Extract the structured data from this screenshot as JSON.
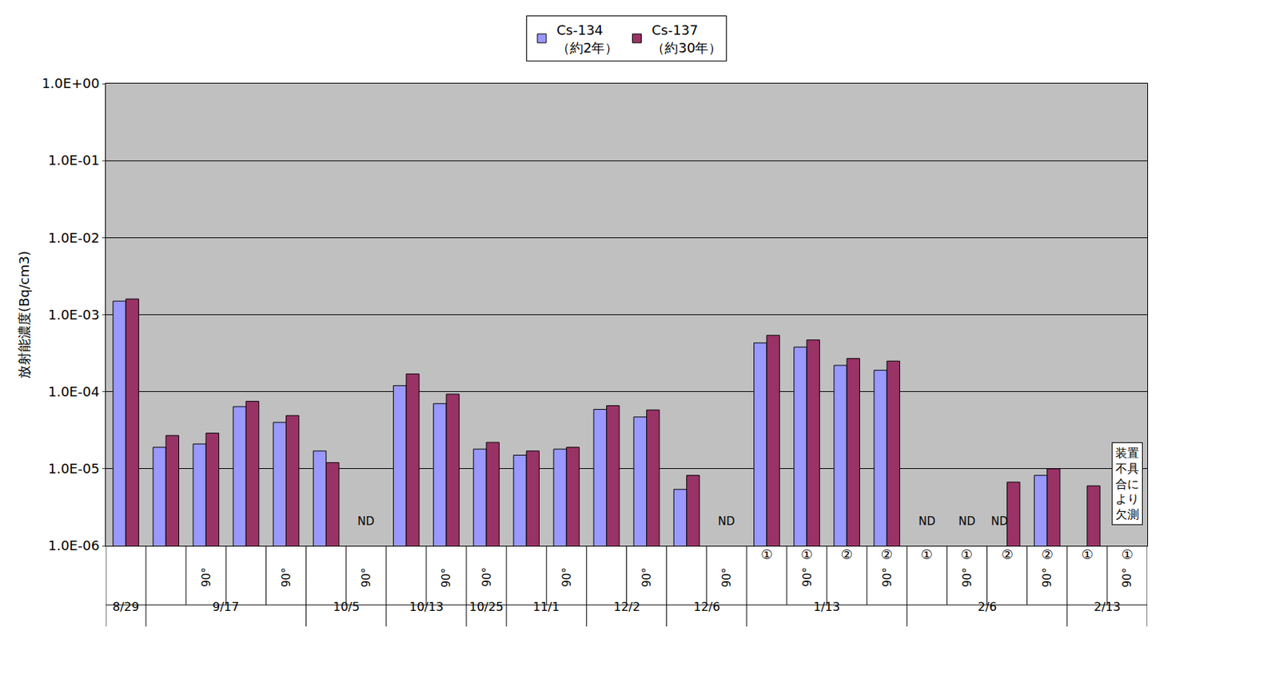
{
  "chart_data": {
    "type": "bar",
    "y_label": "放射能濃度(Bq/cm3)",
    "categories": [
      null,
      null,
      "90°",
      null,
      "90°",
      null,
      "90°",
      null,
      "90°",
      "90°",
      null,
      "90°",
      null,
      "90°",
      null,
      "90°",
      "①",
      "① 90°",
      "②",
      "② 90°",
      "①",
      "① 90°",
      "②",
      "② 90°",
      "①",
      "① 90°"
    ],
    "category_groups": [
      {
        "label": "8/29",
        "count": 1
      },
      {
        "label": "9/17",
        "count": 4
      },
      {
        "label": "10/5",
        "count": 2
      },
      {
        "label": "10/13",
        "count": 2
      },
      {
        "label": "10/25",
        "count": 1
      },
      {
        "label": "11/1",
        "count": 2
      },
      {
        "label": "12/2",
        "count": 2
      },
      {
        "label": "12/6",
        "count": 2
      },
      {
        "label": "1/13",
        "count": 4
      },
      {
        "label": "2/6",
        "count": 4
      },
      {
        "label": "2/13",
        "count": 2
      }
    ],
    "series": [
      {
        "name": "Cs-134",
        "half_life": "（約2年）",
        "color": "#9999ff",
        "values": [
          0.0015,
          1.9e-05,
          2.1e-05,
          6.4e-05,
          4e-05,
          1.7e-05,
          null,
          0.00012,
          7e-05,
          1.8e-05,
          1.5e-05,
          1.8e-05,
          5.9e-05,
          4.7e-05,
          5.4e-06,
          null,
          0.00043,
          0.00038,
          0.00022,
          0.00019,
          null,
          null,
          null,
          8.2e-06,
          null,
          null
        ]
      },
      {
        "name": "Cs-137",
        "half_life": "（約30年）",
        "color": "#993366",
        "values": [
          0.0016,
          2.7e-05,
          2.9e-05,
          7.5e-05,
          4.9e-05,
          1.2e-05,
          null,
          0.00017,
          9.3e-05,
          2.2e-05,
          1.7e-05,
          1.9e-05,
          6.6e-05,
          5.8e-05,
          8.2e-06,
          null,
          0.00054,
          0.00047,
          0.00027,
          0.00025,
          null,
          null,
          6.7e-06,
          1e-05,
          6e-06,
          null
        ]
      }
    ],
    "annotations": [
      {
        "category_index": 6,
        "text": "ND"
      },
      {
        "category_index": 15,
        "text": "ND"
      },
      {
        "category_index": 20,
        "text": "ND"
      },
      {
        "category_index": 21,
        "text": "ND"
      },
      {
        "category_index": 22,
        "text": "ND",
        "series": "Cs-134"
      },
      {
        "category_index": 25,
        "text": "装置不具合により欠測",
        "boxed": true
      }
    ],
    "log": "y",
    "ylim": [
      1e-06,
      1
    ],
    "yticks": [
      {
        "value": 1e-06,
        "label": "1.0E-06"
      },
      {
        "value": 1e-05,
        "label": "1.0E-05"
      },
      {
        "value": 0.0001,
        "label": "1.0E-04"
      },
      {
        "value": 0.001,
        "label": "1.0E-03"
      },
      {
        "value": 0.01,
        "label": "1.0E-02"
      },
      {
        "value": 0.1,
        "label": "1.0E-01"
      },
      {
        "value": 1,
        "label": "1.0E+00"
      }
    ],
    "grid": true,
    "legend": "top"
  }
}
